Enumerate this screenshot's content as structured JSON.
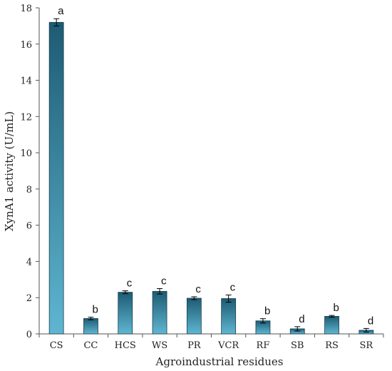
{
  "chart_data": {
    "type": "bar",
    "categories": [
      "CS",
      "CC",
      "HCS",
      "WS",
      "PR",
      "VCR",
      "RF",
      "SB",
      "RS",
      "SR"
    ],
    "values": [
      17.2,
      0.85,
      2.3,
      2.35,
      1.97,
      1.95,
      0.72,
      0.28,
      0.97,
      0.2
    ],
    "errors": [
      0.2,
      0.07,
      0.08,
      0.15,
      0.08,
      0.2,
      0.12,
      0.12,
      0.05,
      0.1
    ],
    "significance": [
      "a",
      "b",
      "c",
      "c",
      "c",
      "c",
      "b",
      "d",
      "b",
      "d"
    ],
    "xlabel": "Agroindustrial residues",
    "ylabel": "XynA1 activity (U/mL)",
    "ylim": [
      0,
      18
    ],
    "yticks": [
      0,
      2,
      4,
      6,
      8,
      10,
      12,
      14,
      16,
      18
    ],
    "grid": false,
    "legend": "none",
    "bar_color_top": "#1d5b73",
    "bar_color_bottom": "#5fb6d1"
  }
}
